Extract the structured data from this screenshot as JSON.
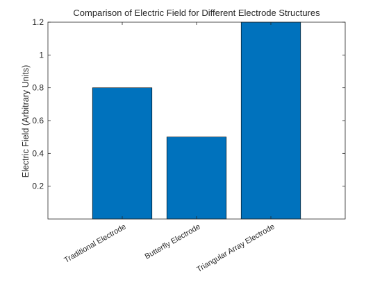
{
  "chart_data": {
    "type": "bar",
    "title": "Comparison of Electric Field for Different Electrode Structures",
    "xlabel": "",
    "ylabel": "Electric Field (Arbitrary Units)",
    "categories": [
      "Traditional Electrode",
      "Butterfly Electrode",
      "Triangular Array Electrode"
    ],
    "values": [
      0.8,
      0.5,
      1.2
    ],
    "ylim": [
      0,
      1.2
    ],
    "yticks": [
      0.2,
      0.4,
      0.6,
      0.8,
      1,
      1.2
    ],
    "ytick_labels": [
      "0.2",
      "0.4",
      "0.6",
      "0.8",
      "1",
      "1.2"
    ],
    "grid": false,
    "bar_color": "#0072BD",
    "bar_edge_color": "#000000",
    "axis_color": "#262626"
  }
}
